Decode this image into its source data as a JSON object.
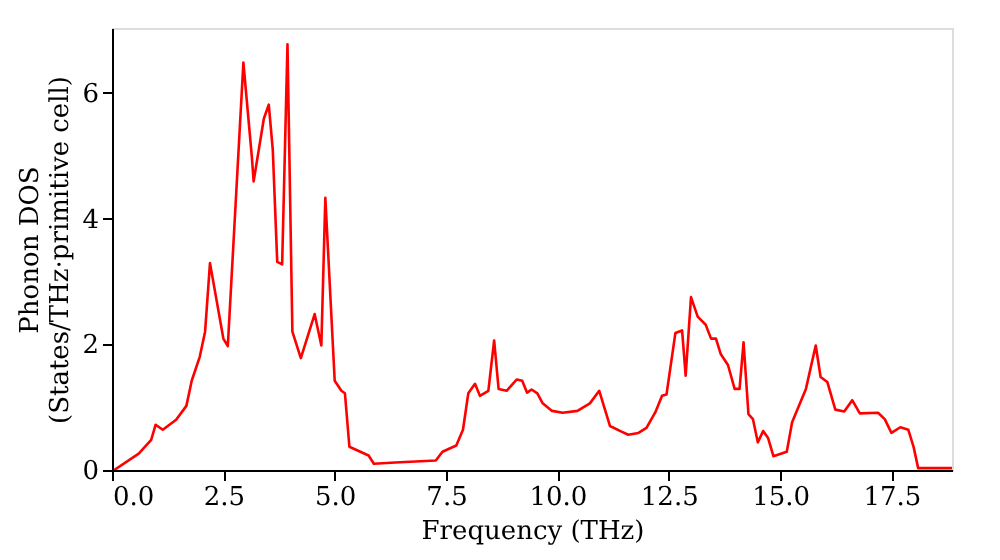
{
  "chart_data": {
    "type": "line",
    "xlabel": "Frequency (THz)",
    "ylabel": "Phonon DOS\n(States/THz·primitive cell)",
    "xlim": [
      0,
      18.86
    ],
    "ylim": [
      0,
      7.03
    ],
    "xticks": [
      {
        "value": 0,
        "label": "0.0"
      },
      {
        "value": 2.5,
        "label": "2.5"
      },
      {
        "value": 5,
        "label": "5.0"
      },
      {
        "value": 7.5,
        "label": "7.5"
      },
      {
        "value": 10,
        "label": "10.0"
      },
      {
        "value": 12.5,
        "label": "12.5"
      },
      {
        "value": 15,
        "label": "15.0"
      },
      {
        "value": 17.5,
        "label": "17.5"
      }
    ],
    "yticks": [
      0,
      2,
      4,
      6
    ],
    "grid": false,
    "line_style": "solid",
    "series": [
      {
        "color": "#ff0000",
        "x": [
          0.05,
          0.6,
          0.88,
          0.98,
          1.14,
          1.44,
          1.67,
          1.79,
          1.97,
          2.09,
          2.2,
          2.5,
          2.6,
          2.95,
          3.14,
          3.18,
          3.41,
          3.52,
          3.61,
          3.71,
          3.82,
          3.94,
          4.05,
          4.24,
          4.55,
          4.7,
          4.79,
          5.0,
          5.15,
          5.23,
          5.33,
          5.76,
          5.88,
          6.36,
          7.27,
          7.42,
          7.73,
          7.88,
          8.0,
          8.15,
          8.26,
          8.45,
          8.58,
          8.68,
          8.86,
          9.09,
          9.21,
          9.32,
          9.42,
          9.55,
          9.67,
          9.88,
          10.12,
          10.45,
          10.73,
          10.94,
          11.18,
          11.44,
          11.59,
          11.82,
          12.0,
          12.2,
          12.35,
          12.45,
          12.65,
          12.8,
          12.88,
          13.0,
          13.15,
          13.33,
          13.45,
          13.56,
          13.67,
          13.83,
          13.98,
          14.09,
          14.18,
          14.29,
          14.39,
          14.5,
          14.62,
          14.73,
          14.85,
          15.15,
          15.27,
          15.58,
          15.8,
          15.91,
          16.06,
          16.24,
          16.44,
          16.62,
          16.79,
          17.2,
          17.35,
          17.5,
          17.7,
          17.88,
          18.0,
          18.1,
          18.86
        ],
        "values": [
          0.0,
          0.26,
          0.48,
          0.72,
          0.64,
          0.8,
          1.02,
          1.42,
          1.8,
          2.2,
          3.29,
          2.09,
          1.97,
          6.48,
          4.98,
          4.59,
          5.59,
          5.81,
          5.09,
          3.31,
          3.27,
          6.77,
          2.2,
          1.78,
          2.48,
          1.98,
          4.33,
          1.42,
          1.26,
          1.22,
          0.37,
          0.23,
          0.1,
          0.12,
          0.15,
          0.29,
          0.39,
          0.64,
          1.22,
          1.37,
          1.18,
          1.26,
          2.06,
          1.29,
          1.26,
          1.44,
          1.42,
          1.23,
          1.28,
          1.22,
          1.06,
          0.94,
          0.91,
          0.94,
          1.06,
          1.26,
          0.7,
          0.61,
          0.56,
          0.59,
          0.67,
          0.92,
          1.18,
          1.2,
          2.18,
          2.22,
          1.5,
          2.75,
          2.44,
          2.31,
          2.09,
          2.09,
          1.84,
          1.67,
          1.29,
          1.29,
          2.03,
          0.89,
          0.81,
          0.44,
          0.62,
          0.51,
          0.22,
          0.29,
          0.76,
          1.29,
          1.98,
          1.48,
          1.4,
          0.96,
          0.93,
          1.11,
          0.9,
          0.91,
          0.81,
          0.59,
          0.68,
          0.64,
          0.36,
          0.03,
          0.03
        ]
      }
    ]
  }
}
